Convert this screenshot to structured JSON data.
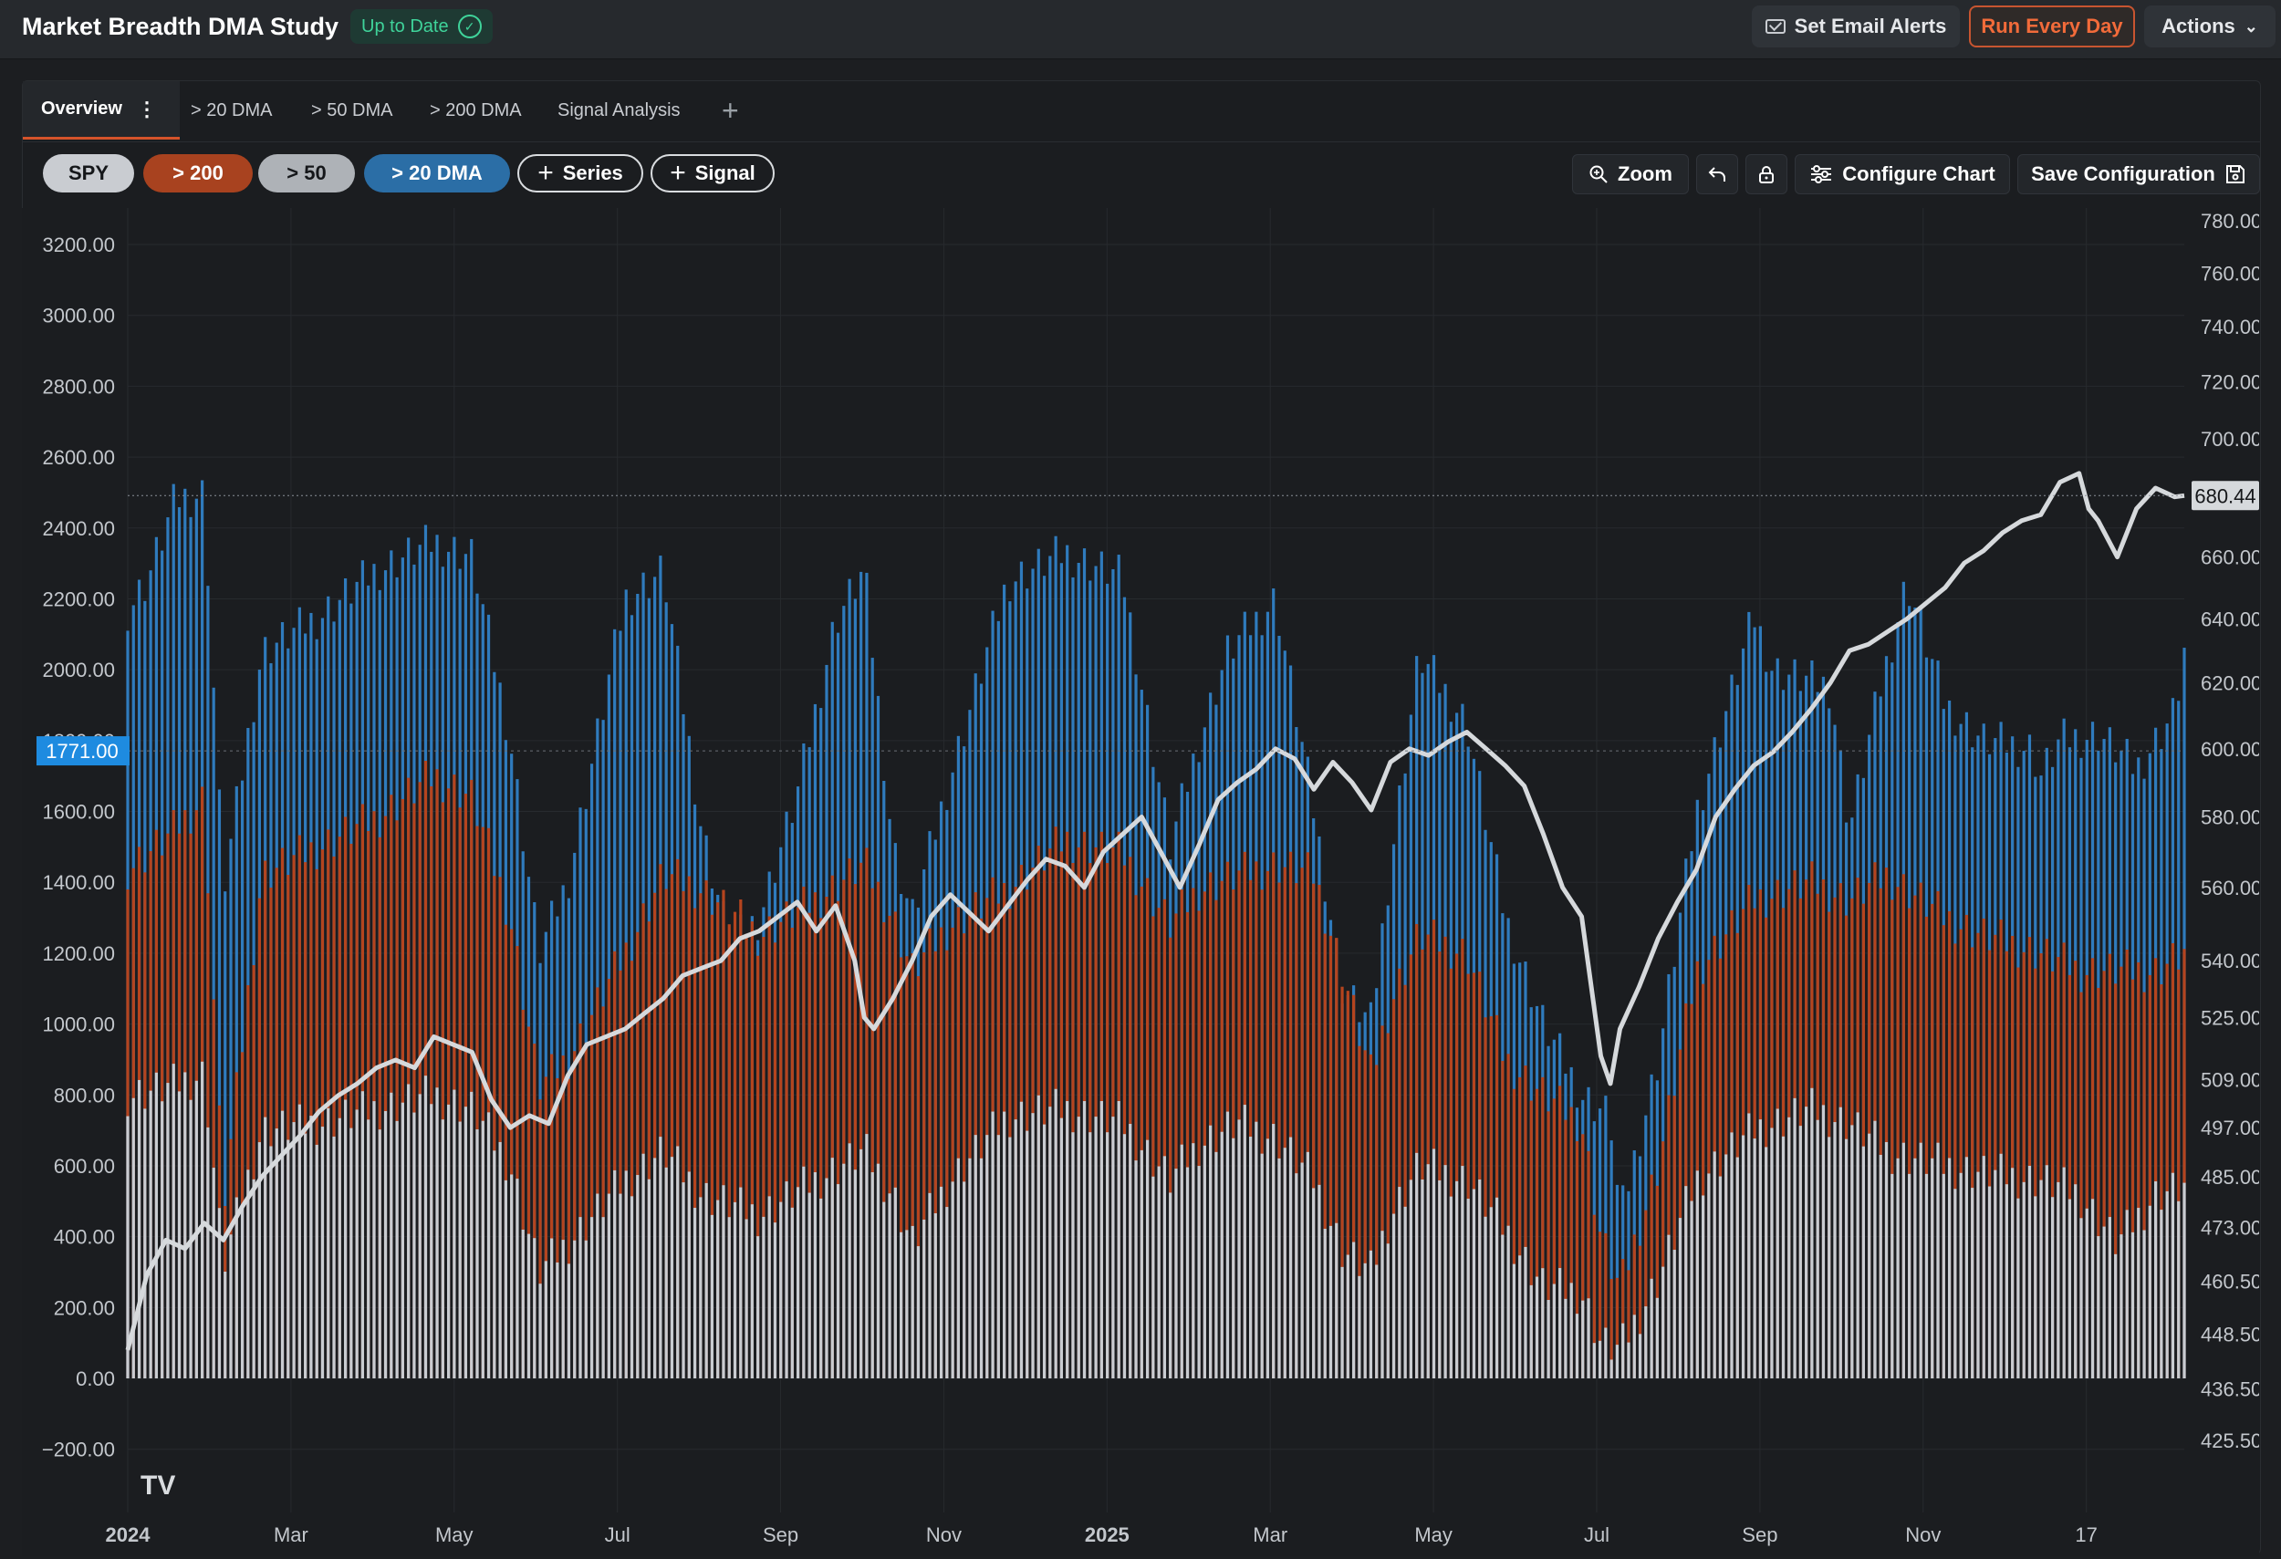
{
  "header": {
    "title": "Market Breadth DMA Study",
    "status": "Up to Date",
    "email_alerts": "Set Email Alerts",
    "run_every_day": "Run Every Day",
    "actions": "Actions"
  },
  "tabs": [
    "Overview",
    "> 20 DMA",
    "> 50 DMA",
    "> 200 DMA",
    "Signal Analysis"
  ],
  "chips": {
    "spy": "SPY",
    "gt200": "> 200",
    "gt50": "> 50",
    "gt20": "> 20 DMA",
    "series": "Series",
    "signal": "Signal"
  },
  "toolbar": {
    "zoom": "Zoom",
    "configure": "Configure Chart",
    "save": "Save Configuration"
  },
  "colors": {
    "spy": "#d6d9dc",
    "gt200": "#b5441e",
    "gt50": "#c9ccd1",
    "gt20": "#2f7bbd",
    "bg": "#1b1d20",
    "grid": "#272a2e"
  },
  "chart_data": {
    "type": "bar",
    "left_axis": {
      "ticks": [
        "3200.00",
        "3000.00",
        "2800.00",
        "2600.00",
        "2400.00",
        "2200.00",
        "2000.00",
        "1800.00",
        "1600.00",
        "1400.00",
        "1200.00",
        "1000.00",
        "800.00",
        "600.00",
        "400.00",
        "200.00",
        "0.00",
        "−200.00"
      ],
      "range": [
        -280,
        3240
      ]
    },
    "right_axis": {
      "ticks": [
        "780.00",
        "760.00",
        "740.00",
        "720.00",
        "700.00",
        "660.00",
        "640.00",
        "620.00",
        "600.00",
        "580.00",
        "560.00",
        "540.00",
        "525.00",
        "509.00",
        "497.00",
        "485.00",
        "473.00",
        "460.50",
        "448.50",
        "436.50",
        "425.50"
      ],
      "scale": "log",
      "range": [
        418,
        785
      ]
    },
    "x_labels": [
      "2024",
      "Mar",
      "May",
      "Jul",
      "Sep",
      "Nov",
      "2025",
      "Mar",
      "May",
      "Jul",
      "Sep",
      "Nov",
      "17"
    ],
    "crosshair_left": "1771.00",
    "last_price": "680.44",
    "series": [
      {
        "name": "> 20 DMA",
        "envelope": [
          [
            0,
            2170
          ],
          [
            0.01,
            2250
          ],
          [
            0.025,
            2480
          ],
          [
            0.04,
            2500
          ],
          [
            0.05,
            1380
          ],
          [
            0.07,
            2050
          ],
          [
            0.1,
            2150
          ],
          [
            0.13,
            2280
          ],
          [
            0.16,
            2360
          ],
          [
            0.18,
            2320
          ],
          [
            0.2,
            1800
          ],
          [
            0.215,
            1200
          ],
          [
            0.23,
            1400
          ],
          [
            0.26,
            2200
          ],
          [
            0.28,
            2280
          ],
          [
            0.3,
            1550
          ],
          [
            0.315,
            1220
          ],
          [
            0.33,
            1300
          ],
          [
            0.35,
            1650
          ],
          [
            0.37,
            2140
          ],
          [
            0.385,
            2280
          ],
          [
            0.4,
            1500
          ],
          [
            0.41,
            1300
          ],
          [
            0.43,
            1700
          ],
          [
            0.46,
            2250
          ],
          [
            0.49,
            2330
          ],
          [
            0.52,
            2260
          ],
          [
            0.545,
            1500
          ],
          [
            0.56,
            1800
          ],
          [
            0.575,
            2050
          ],
          [
            0.6,
            2200
          ],
          [
            0.62,
            1600
          ],
          [
            0.635,
            1100
          ],
          [
            0.65,
            1000
          ],
          [
            0.66,
            1450
          ],
          [
            0.675,
            2040
          ],
          [
            0.7,
            1850
          ],
          [
            0.72,
            1300
          ],
          [
            0.74,
            1000
          ],
          [
            0.76,
            800
          ],
          [
            0.775,
            740
          ],
          [
            0.78,
            450
          ],
          [
            0.8,
            900
          ],
          [
            0.82,
            1600
          ],
          [
            0.85,
            2150
          ],
          [
            0.86,
            2000
          ],
          [
            0.89,
            1950
          ],
          [
            0.9,
            1550
          ],
          [
            0.915,
            1920
          ],
          [
            0.93,
            2250
          ],
          [
            0.95,
            1900
          ],
          [
            0.97,
            1800
          ],
          [
            0.995,
            1780
          ],
          [
            1.0,
            1700
          ],
          [
            1.01,
            1800
          ],
          [
            1.03,
            1820
          ],
          [
            1.05,
            1720
          ],
          [
            1.07,
            1880
          ],
          [
            1.075,
            2050
          ]
        ]
      },
      {
        "name": "> 200",
        "envelope": [
          [
            0,
            1440
          ],
          [
            0.02,
            1520
          ],
          [
            0.04,
            1640
          ],
          [
            0.05,
            480
          ],
          [
            0.07,
            1420
          ],
          [
            0.1,
            1500
          ],
          [
            0.13,
            1580
          ],
          [
            0.16,
            1700
          ],
          [
            0.18,
            1640
          ],
          [
            0.2,
            1300
          ],
          [
            0.215,
            820
          ],
          [
            0.23,
            900
          ],
          [
            0.26,
            1200
          ],
          [
            0.28,
            1420
          ],
          [
            0.3,
            1380
          ],
          [
            0.33,
            1250
          ],
          [
            0.36,
            1350
          ],
          [
            0.385,
            1450
          ],
          [
            0.4,
            1300
          ],
          [
            0.41,
            1150
          ],
          [
            0.43,
            1280
          ],
          [
            0.46,
            1380
          ],
          [
            0.49,
            1520
          ],
          [
            0.52,
            1480
          ],
          [
            0.545,
            1280
          ],
          [
            0.56,
            1380
          ],
          [
            0.58,
            1420
          ],
          [
            0.6,
            1450
          ],
          [
            0.62,
            1420
          ],
          [
            0.635,
            1150
          ],
          [
            0.65,
            850
          ],
          [
            0.66,
            1060
          ],
          [
            0.675,
            1250
          ],
          [
            0.7,
            1200
          ],
          [
            0.72,
            900
          ],
          [
            0.74,
            800
          ],
          [
            0.76,
            720
          ],
          [
            0.77,
            400
          ],
          [
            0.78,
            250
          ],
          [
            0.8,
            600
          ],
          [
            0.82,
            1150
          ],
          [
            0.85,
            1350
          ],
          [
            0.88,
            1400
          ],
          [
            0.9,
            1350
          ],
          [
            0.92,
            1420
          ],
          [
            0.95,
            1300
          ],
          [
            0.97,
            1250
          ],
          [
            1.0,
            1200
          ],
          [
            1.02,
            1150
          ],
          [
            1.04,
            1150
          ],
          [
            1.06,
            1150
          ],
          [
            1.075,
            1200
          ]
        ]
      },
      {
        "name": "> 50",
        "envelope": [
          [
            0,
            800
          ],
          [
            0.02,
            820
          ],
          [
            0.04,
            860
          ],
          [
            0.05,
            320
          ],
          [
            0.07,
            700
          ],
          [
            0.1,
            720
          ],
          [
            0.13,
            760
          ],
          [
            0.16,
            800
          ],
          [
            0.18,
            760
          ],
          [
            0.2,
            600
          ],
          [
            0.215,
            300
          ],
          [
            0.23,
            380
          ],
          [
            0.26,
            560
          ],
          [
            0.28,
            640
          ],
          [
            0.3,
            520
          ],
          [
            0.33,
            460
          ],
          [
            0.36,
            560
          ],
          [
            0.385,
            640
          ],
          [
            0.4,
            520
          ],
          [
            0.41,
            380
          ],
          [
            0.43,
            560
          ],
          [
            0.46,
            740
          ],
          [
            0.49,
            760
          ],
          [
            0.52,
            720
          ],
          [
            0.545,
            560
          ],
          [
            0.56,
            660
          ],
          [
            0.58,
            720
          ],
          [
            0.6,
            680
          ],
          [
            0.62,
            560
          ],
          [
            0.635,
            360
          ],
          [
            0.65,
            300
          ],
          [
            0.66,
            460
          ],
          [
            0.675,
            600
          ],
          [
            0.7,
            560
          ],
          [
            0.72,
            420
          ],
          [
            0.74,
            260
          ],
          [
            0.76,
            240
          ],
          [
            0.77,
            100
          ],
          [
            0.78,
            80
          ],
          [
            0.8,
            280
          ],
          [
            0.82,
            560
          ],
          [
            0.85,
            700
          ],
          [
            0.88,
            760
          ],
          [
            0.9,
            720
          ],
          [
            0.92,
            640
          ],
          [
            0.95,
            600
          ],
          [
            0.97,
            580
          ],
          [
            1.0,
            560
          ],
          [
            1.02,
            520
          ],
          [
            1.04,
            380
          ],
          [
            1.06,
            520
          ],
          [
            1.075,
            540
          ]
        ]
      },
      {
        "name": "SPY",
        "points": [
          [
            0,
            445
          ],
          [
            0.01,
            462
          ],
          [
            0.02,
            470
          ],
          [
            0.03,
            468
          ],
          [
            0.04,
            474
          ],
          [
            0.05,
            470
          ],
          [
            0.06,
            478
          ],
          [
            0.07,
            485
          ],
          [
            0.08,
            490
          ],
          [
            0.09,
            495
          ],
          [
            0.1,
            501
          ],
          [
            0.11,
            505
          ],
          [
            0.12,
            508
          ],
          [
            0.13,
            512
          ],
          [
            0.14,
            514
          ],
          [
            0.15,
            512
          ],
          [
            0.16,
            520
          ],
          [
            0.17,
            518
          ],
          [
            0.18,
            516
          ],
          [
            0.19,
            504
          ],
          [
            0.2,
            497
          ],
          [
            0.21,
            500
          ],
          [
            0.22,
            498
          ],
          [
            0.23,
            510
          ],
          [
            0.24,
            518
          ],
          [
            0.25,
            520
          ],
          [
            0.26,
            522
          ],
          [
            0.27,
            526
          ],
          [
            0.28,
            530
          ],
          [
            0.29,
            536
          ],
          [
            0.3,
            538
          ],
          [
            0.31,
            540
          ],
          [
            0.32,
            546
          ],
          [
            0.33,
            548
          ],
          [
            0.34,
            552
          ],
          [
            0.35,
            556
          ],
          [
            0.36,
            548
          ],
          [
            0.37,
            555
          ],
          [
            0.38,
            540
          ],
          [
            0.385,
            525
          ],
          [
            0.39,
            522
          ],
          [
            0.4,
            530
          ],
          [
            0.41,
            540
          ],
          [
            0.42,
            552
          ],
          [
            0.43,
            558
          ],
          [
            0.44,
            553
          ],
          [
            0.45,
            548
          ],
          [
            0.46,
            555
          ],
          [
            0.47,
            562
          ],
          [
            0.48,
            568
          ],
          [
            0.49,
            566
          ],
          [
            0.5,
            560
          ],
          [
            0.51,
            570
          ],
          [
            0.52,
            575
          ],
          [
            0.53,
            580
          ],
          [
            0.54,
            570
          ],
          [
            0.55,
            560
          ],
          [
            0.56,
            572
          ],
          [
            0.57,
            585
          ],
          [
            0.58,
            590
          ],
          [
            0.59,
            594
          ],
          [
            0.6,
            600
          ],
          [
            0.61,
            597
          ],
          [
            0.62,
            588
          ],
          [
            0.63,
            596
          ],
          [
            0.64,
            590
          ],
          [
            0.65,
            582
          ],
          [
            0.66,
            596
          ],
          [
            0.67,
            600
          ],
          [
            0.68,
            598
          ],
          [
            0.69,
            602
          ],
          [
            0.7,
            605
          ],
          [
            0.71,
            600
          ],
          [
            0.72,
            595
          ],
          [
            0.73,
            589
          ],
          [
            0.74,
            575
          ],
          [
            0.75,
            560
          ],
          [
            0.76,
            552
          ],
          [
            0.77,
            515
          ],
          [
            0.775,
            508
          ],
          [
            0.78,
            522
          ],
          [
            0.79,
            533
          ],
          [
            0.8,
            546
          ],
          [
            0.81,
            556
          ],
          [
            0.82,
            565
          ],
          [
            0.83,
            580
          ],
          [
            0.84,
            588
          ],
          [
            0.85,
            595
          ],
          [
            0.86,
            599
          ],
          [
            0.87,
            605
          ],
          [
            0.88,
            612
          ],
          [
            0.89,
            620
          ],
          [
            0.9,
            630
          ],
          [
            0.91,
            632
          ],
          [
            0.92,
            636
          ],
          [
            0.93,
            640
          ],
          [
            0.94,
            645
          ],
          [
            0.95,
            650
          ],
          [
            0.96,
            658
          ],
          [
            0.97,
            662
          ],
          [
            0.98,
            668
          ],
          [
            0.99,
            672
          ],
          [
            1.0,
            674
          ],
          [
            1.01,
            685
          ],
          [
            1.02,
            688
          ],
          [
            1.025,
            676
          ],
          [
            1.03,
            672
          ],
          [
            1.04,
            660
          ],
          [
            1.05,
            676
          ],
          [
            1.06,
            683
          ],
          [
            1.07,
            680
          ],
          [
            1.075,
            680.44
          ]
        ]
      }
    ]
  }
}
